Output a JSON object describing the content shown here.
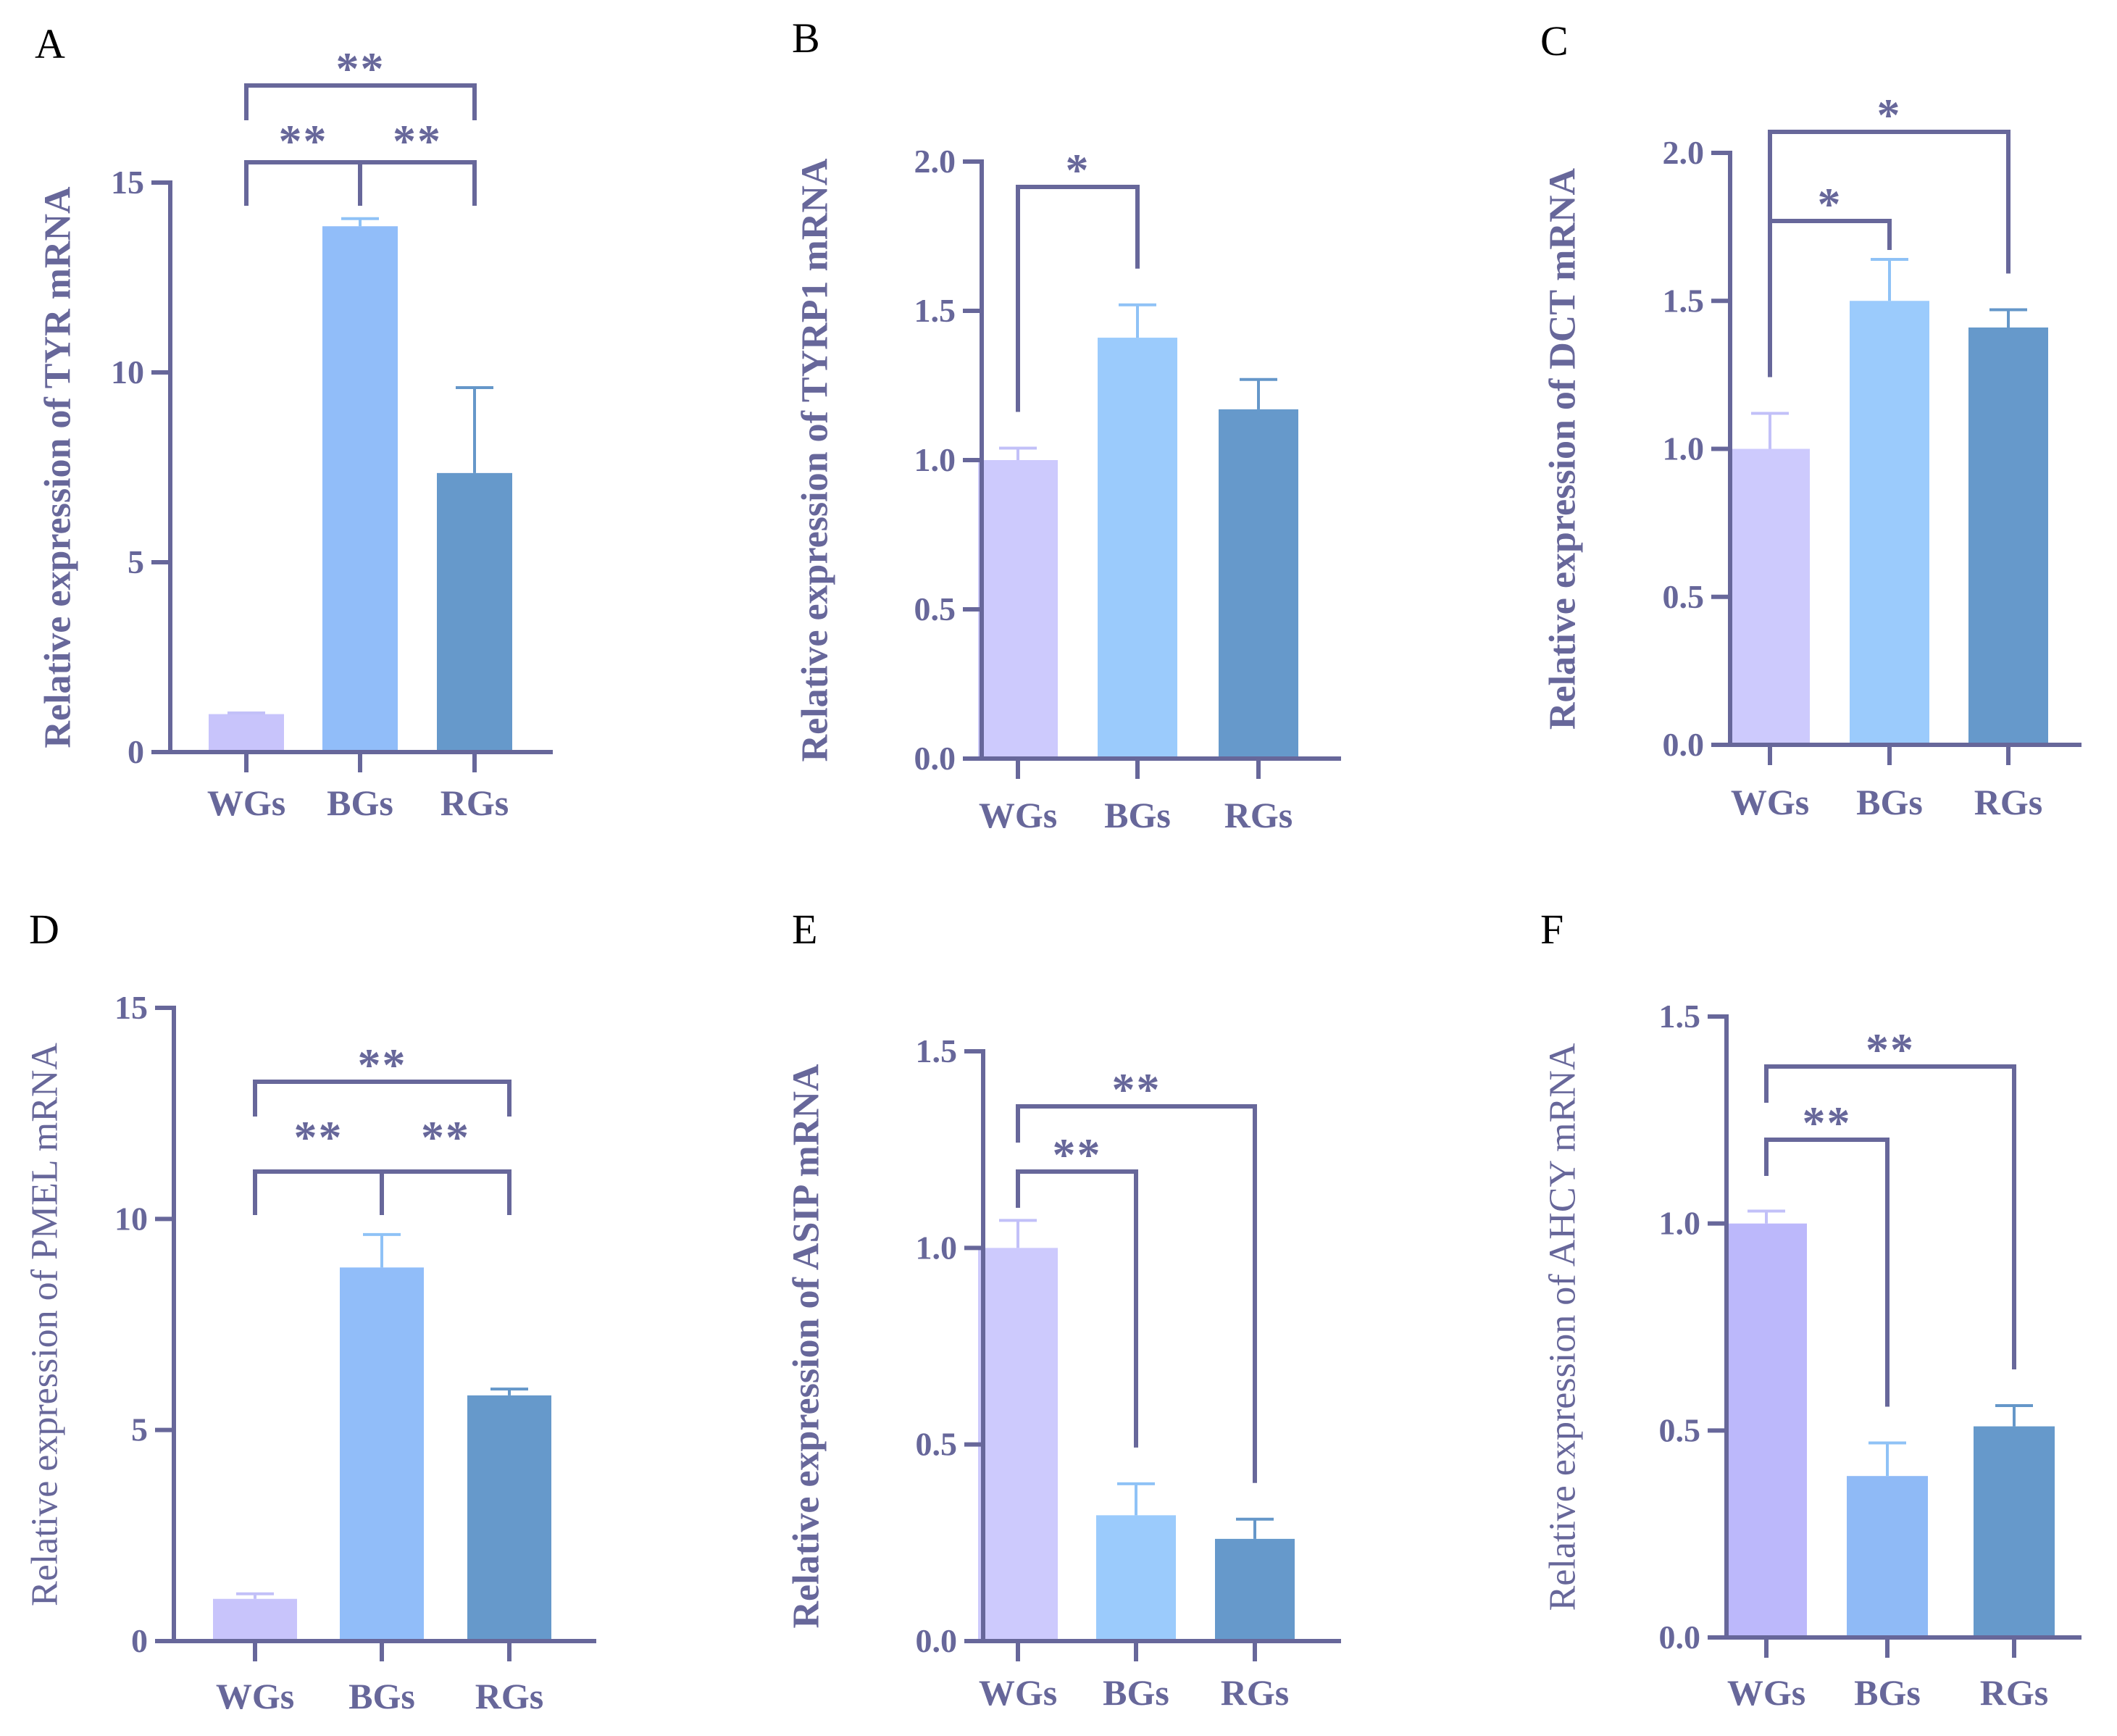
{
  "figure": {
    "axis_color": "#67679a",
    "errorbar_colors": [
      "#c2c0f8",
      "#8fc2f6",
      "#6597c9"
    ]
  },
  "chart_data": [
    {
      "panel": "A",
      "type": "bar",
      "title": "",
      "xlabel": "",
      "ylabel": "Relative expression of TYR mRNA",
      "ylabel_bold": true,
      "categories": [
        "WGs",
        "BGs",
        "RGs"
      ],
      "values": [
        1.0,
        13.85,
        7.35
      ],
      "errors": [
        0.03,
        0.2,
        2.25
      ],
      "colors": [
        "#c8c4fb",
        "#91bdf9",
        "#6699cb"
      ],
      "ylim": [
        0,
        15
      ],
      "yticks": [
        0,
        5,
        10,
        15
      ],
      "ytick_labels": [
        "0",
        "5",
        "10",
        "15"
      ],
      "significance": [
        {
          "from": 0,
          "to": 1,
          "label": "**",
          "level": 1,
          "style": "branch"
        },
        {
          "from": 1,
          "to": 2,
          "label": "**",
          "level": 1,
          "style": "branch"
        },
        {
          "from": 0,
          "to": 2,
          "label": "**",
          "level": 2,
          "style": "bracket"
        }
      ]
    },
    {
      "panel": "B",
      "type": "bar",
      "title": "",
      "xlabel": "",
      "ylabel": "Relative expression of TYRP1 mRNA",
      "ylabel_bold": true,
      "categories": [
        "WGs",
        "BGs",
        "RGs"
      ],
      "values": [
        1.0,
        1.41,
        1.17
      ],
      "errors": [
        0.04,
        0.11,
        0.1
      ],
      "colors": [
        "#cdcafd",
        "#9bcbfc",
        "#6699cb"
      ],
      "ylim": [
        0,
        2.0
      ],
      "yticks": [
        0,
        0.5,
        1.0,
        1.5,
        2.0
      ],
      "ytick_labels": [
        "0.0",
        "0.5",
        "1.0",
        "1.5",
        "2.0"
      ],
      "significance": [
        {
          "from": 0,
          "to": 1,
          "label": "*",
          "level": 1,
          "style": "bracket"
        }
      ]
    },
    {
      "panel": "C",
      "type": "bar",
      "title": "",
      "xlabel": "",
      "ylabel": "Relative expression of DCT mRNA",
      "ylabel_bold": true,
      "categories": [
        "WGs",
        "BGs",
        "RGs"
      ],
      "values": [
        1.0,
        1.5,
        1.41
      ],
      "errors": [
        0.12,
        0.14,
        0.06
      ],
      "colors": [
        "#cdcafd",
        "#9bcbfc",
        "#6699cb"
      ],
      "ylim": [
        0,
        2.0
      ],
      "yticks": [
        0,
        0.5,
        1.0,
        1.5,
        2.0
      ],
      "ytick_labels": [
        "0.0",
        "0.5",
        "1.0",
        "1.5",
        "2.0"
      ],
      "significance": [
        {
          "from": 0,
          "to": 1,
          "label": "*",
          "level": 1,
          "style": "bracket"
        },
        {
          "from": 0,
          "to": 2,
          "label": "*",
          "level": 2,
          "style": "bracket"
        }
      ]
    },
    {
      "panel": "D",
      "type": "bar",
      "title": "",
      "xlabel": "",
      "ylabel": "Relative expression of PMEL mRNA",
      "ylabel_bold": false,
      "categories": [
        "WGs",
        "BGs",
        "RGs"
      ],
      "values": [
        1.0,
        8.85,
        5.82
      ],
      "errors": [
        0.12,
        0.78,
        0.15
      ],
      "colors": [
        "#c8c4fb",
        "#91bdf9",
        "#6699cb"
      ],
      "ylim": [
        0,
        15
      ],
      "yticks": [
        0,
        5,
        10,
        15
      ],
      "ytick_labels": [
        "0",
        "5",
        "10",
        "15"
      ],
      "significance": [
        {
          "from": 0,
          "to": 1,
          "label": "**",
          "level": 1,
          "style": "branch"
        },
        {
          "from": 1,
          "to": 2,
          "label": "**",
          "level": 1,
          "style": "branch"
        },
        {
          "from": 0,
          "to": 2,
          "label": "**",
          "level": 2,
          "style": "bracket"
        }
      ]
    },
    {
      "panel": "E",
      "type": "bar",
      "title": "",
      "xlabel": "",
      "ylabel": "Relative expression of ASIP mRNA",
      "ylabel_bold": true,
      "categories": [
        "WGs",
        "BGs",
        "RGs"
      ],
      "values": [
        1.0,
        0.32,
        0.26
      ],
      "errors": [
        0.07,
        0.08,
        0.05
      ],
      "colors": [
        "#cdcafd",
        "#9bcbfc",
        "#6699cb"
      ],
      "ylim": [
        0,
        1.5
      ],
      "yticks": [
        0,
        0.5,
        1.0,
        1.5
      ],
      "ytick_labels": [
        "0.0",
        "0.5",
        "1.0",
        "1.5"
      ],
      "significance": [
        {
          "from": 0,
          "to": 1,
          "label": "**",
          "level": 1,
          "style": "bracket"
        },
        {
          "from": 0,
          "to": 2,
          "label": "**",
          "level": 2,
          "style": "bracket"
        }
      ]
    },
    {
      "panel": "F",
      "type": "bar",
      "title": "",
      "xlabel": "",
      "ylabel": "Relative expression of AHCY mRNA",
      "ylabel_bold": false,
      "categories": [
        "WGs",
        "BGs",
        "RGs"
      ],
      "values": [
        1.0,
        0.39,
        0.51
      ],
      "errors": [
        0.03,
        0.08,
        0.05
      ],
      "colors": [
        "#bcb8fb",
        "#8fbaf6",
        "#6699cb"
      ],
      "ylim": [
        0,
        1.5
      ],
      "yticks": [
        0,
        0.5,
        1.0,
        1.5
      ],
      "ytick_labels": [
        "0.0",
        "0.5",
        "1.0",
        "1.5"
      ],
      "significance": [
        {
          "from": 0,
          "to": 1,
          "label": "**",
          "level": 1,
          "style": "bracket"
        },
        {
          "from": 0,
          "to": 2,
          "label": "**",
          "level": 2,
          "style": "bracket"
        }
      ]
    }
  ]
}
